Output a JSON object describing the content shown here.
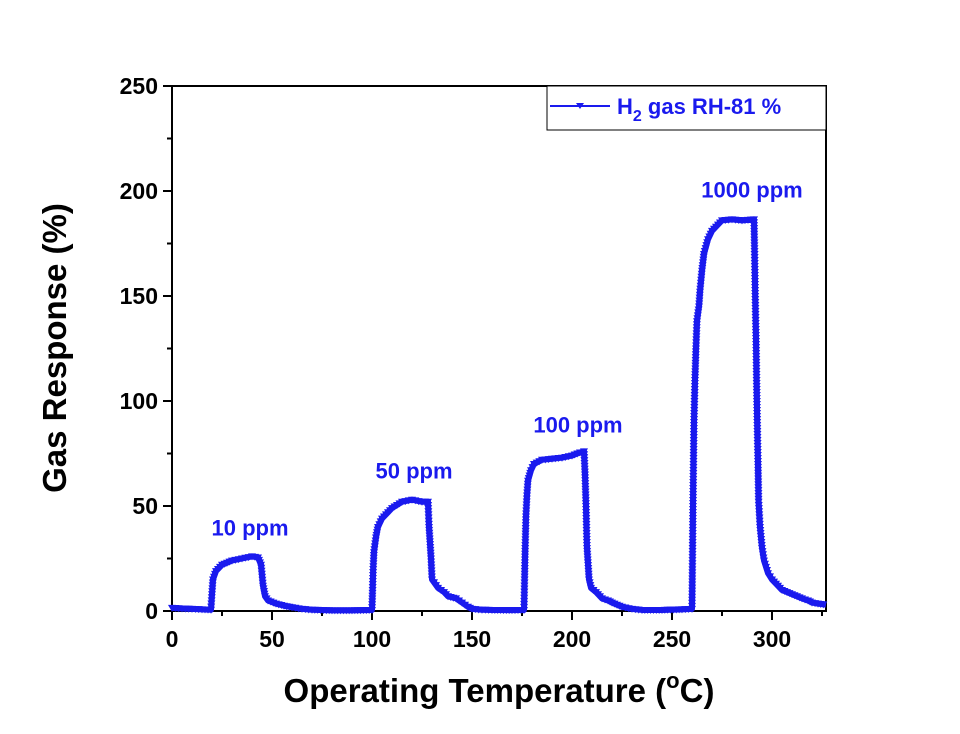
{
  "chart_data": {
    "type": "line",
    "xlabel": "Operating Temperature (",
    "xlabel_sup": "o",
    "xlabel_end": "C)",
    "ylabel": "Gas Response (%)",
    "xlim": [
      0,
      327
    ],
    "ylim": [
      0,
      250
    ],
    "xticks": [
      0,
      50,
      100,
      150,
      200,
      250,
      300
    ],
    "yticks": [
      0,
      50,
      100,
      150,
      200,
      250
    ],
    "grid": false,
    "legend_placement": "top-right",
    "colors": {
      "series": "#1a1aee",
      "axis": "#000000"
    },
    "marker": "triangle-down",
    "series": [
      {
        "name": "H2 gas RH-81 %",
        "legend_main": "H",
        "legend_sub": "2",
        "legend_rest": " gas RH-81 %",
        "points": [
          [
            0,
            1.5
          ],
          [
            5,
            1.2
          ],
          [
            10,
            1
          ],
          [
            15,
            0.8
          ],
          [
            19.5,
            0.6
          ],
          [
            20,
            8
          ],
          [
            20.5,
            15
          ],
          [
            22,
            19
          ],
          [
            25,
            22
          ],
          [
            30,
            24
          ],
          [
            35,
            25
          ],
          [
            40,
            26
          ],
          [
            43,
            25.5
          ],
          [
            44.5,
            22
          ],
          [
            45.5,
            12
          ],
          [
            46.5,
            7
          ],
          [
            48,
            5
          ],
          [
            52,
            3.5
          ],
          [
            56,
            2.5
          ],
          [
            60,
            1.8
          ],
          [
            65,
            1
          ],
          [
            70,
            0.6
          ],
          [
            80,
            0.3
          ],
          [
            90,
            0.3
          ],
          [
            100,
            0.5
          ],
          [
            100.3,
            10
          ],
          [
            100.6,
            20
          ],
          [
            101,
            28
          ],
          [
            102,
            35
          ],
          [
            103,
            40
          ],
          [
            105,
            44
          ],
          [
            108,
            47
          ],
          [
            110,
            49
          ],
          [
            115,
            52
          ],
          [
            120,
            53
          ],
          [
            125,
            52
          ],
          [
            128,
            52
          ],
          [
            128.5,
            40
          ],
          [
            129.5,
            25
          ],
          [
            130,
            15
          ],
          [
            133,
            11
          ],
          [
            136,
            9
          ],
          [
            138,
            7
          ],
          [
            142,
            6
          ],
          [
            145,
            4
          ],
          [
            148,
            2
          ],
          [
            150,
            1
          ],
          [
            155,
            0.6
          ],
          [
            160,
            0.5
          ],
          [
            170,
            0.4
          ],
          [
            176,
            0.5
          ],
          [
            176.3,
            15
          ],
          [
            176.6,
            30
          ],
          [
            177,
            45
          ],
          [
            177.5,
            55
          ],
          [
            178,
            62
          ],
          [
            179.5,
            67
          ],
          [
            181,
            70
          ],
          [
            185,
            72
          ],
          [
            190,
            72.5
          ],
          [
            195,
            73
          ],
          [
            200,
            74
          ],
          [
            204,
            75.5
          ],
          [
            206,
            76
          ],
          [
            206.5,
            65
          ],
          [
            207,
            50
          ],
          [
            207.5,
            30
          ],
          [
            208.5,
            15
          ],
          [
            209.5,
            11
          ],
          [
            212,
            9
          ],
          [
            215,
            6
          ],
          [
            218,
            5
          ],
          [
            220,
            4
          ],
          [
            225,
            2
          ],
          [
            230,
            1
          ],
          [
            235,
            0.5
          ],
          [
            245,
            0.5
          ],
          [
            255,
            0.8
          ],
          [
            260,
            1
          ],
          [
            260.3,
            30
          ],
          [
            260.6,
            60
          ],
          [
            261,
            90
          ],
          [
            261.5,
            110
          ],
          [
            262,
            125
          ],
          [
            262.5,
            138
          ],
          [
            263.5,
            145
          ],
          [
            264,
            152
          ],
          [
            265,
            162
          ],
          [
            266,
            170
          ],
          [
            268,
            177
          ],
          [
            270,
            181
          ],
          [
            273,
            184
          ],
          [
            275,
            186
          ],
          [
            280,
            186.5
          ],
          [
            285,
            186
          ],
          [
            291,
            186.5
          ],
          [
            291.3,
            170
          ],
          [
            291.6,
            150
          ],
          [
            292,
            130
          ],
          [
            292.3,
            110
          ],
          [
            292.6,
            90
          ],
          [
            293,
            70
          ],
          [
            293.3,
            52
          ],
          [
            294,
            40
          ],
          [
            295,
            30
          ],
          [
            296,
            24
          ],
          [
            298,
            18
          ],
          [
            300,
            15
          ],
          [
            303,
            12
          ],
          [
            305,
            10
          ],
          [
            310,
            8
          ],
          [
            315,
            6
          ],
          [
            318,
            5
          ],
          [
            320,
            4
          ],
          [
            323,
            3.5
          ],
          [
            327,
            3
          ]
        ]
      }
    ],
    "annotations": [
      {
        "text": "10 ppm",
        "x": 39,
        "y": 36
      },
      {
        "text": "50 ppm",
        "x": 121,
        "y": 63
      },
      {
        "text": "100 ppm",
        "x": 203,
        "y": 85
      },
      {
        "text": "1000 ppm",
        "x": 290,
        "y": 197
      }
    ]
  }
}
